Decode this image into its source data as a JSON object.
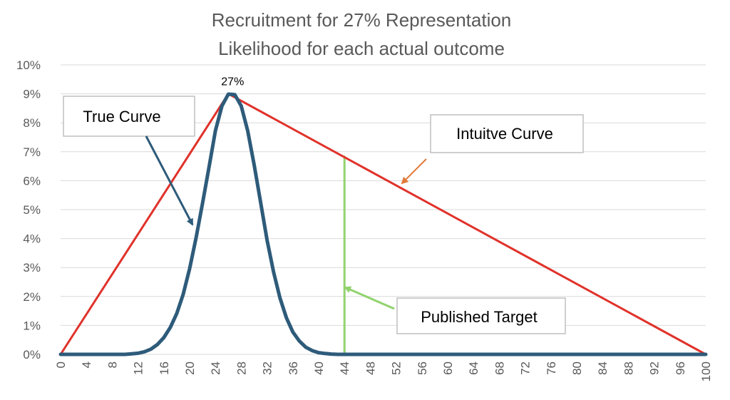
{
  "chart_data": {
    "type": "line",
    "title": "Recruitment for 27% Representation",
    "subtitle": "Likelihood for each actual outcome",
    "xlabel": "",
    "ylabel": "",
    "xlim": [
      0,
      100
    ],
    "ylim": [
      0,
      0.1
    ],
    "x_ticks": [
      0,
      4,
      8,
      12,
      16,
      20,
      24,
      28,
      32,
      36,
      40,
      44,
      48,
      52,
      56,
      60,
      64,
      68,
      72,
      76,
      80,
      84,
      88,
      92,
      96,
      100
    ],
    "y_ticks": [
      "0%",
      "1%",
      "2%",
      "3%",
      "4%",
      "5%",
      "6%",
      "7%",
      "8%",
      "9%",
      "10%"
    ],
    "y_tick_values": [
      0,
      0.01,
      0.02,
      0.03,
      0.04,
      0.05,
      0.06,
      0.07,
      0.08,
      0.09,
      0.1
    ],
    "grid": true,
    "legend": "none",
    "series": [
      {
        "name": "True Curve",
        "color": "#2E5B7A",
        "x": [
          0,
          4,
          8,
          10,
          11,
          12,
          13,
          14,
          15,
          16,
          17,
          18,
          19,
          20,
          21,
          22,
          23,
          24,
          25,
          26,
          27,
          28,
          29,
          30,
          31,
          32,
          33,
          34,
          35,
          36,
          37,
          38,
          39,
          40,
          41,
          42,
          43,
          44,
          48,
          60,
          80,
          100
        ],
        "y": [
          0,
          0,
          0,
          0,
          0.0002,
          0.0004,
          0.0009,
          0.0018,
          0.0034,
          0.0058,
          0.0093,
          0.0141,
          0.0207,
          0.0296,
          0.0402,
          0.0522,
          0.0645,
          0.0773,
          0.0858,
          0.0899,
          0.0897,
          0.0858,
          0.0773,
          0.0655,
          0.0525,
          0.0395,
          0.0285,
          0.0195,
          0.0126,
          0.0077,
          0.0046,
          0.0025,
          0.0013,
          0.0006,
          0.0003,
          0.0001,
          0,
          0,
          0,
          0,
          0,
          0
        ]
      },
      {
        "name": "Intuitve Curve",
        "color": "#E0322A",
        "x": [
          0,
          26,
          100
        ],
        "y": [
          0,
          0.09,
          0
        ]
      },
      {
        "name": "Published Target",
        "color": "#92D36E",
        "x": [
          44,
          44
        ],
        "y": [
          0,
          0.0683
        ]
      }
    ],
    "annotations": {
      "peak_label": "27%",
      "peak_x": 26,
      "peak_y": 0.09,
      "true_curve_label": "True Curve",
      "intuitive_curve_label": "Intuitve Curve",
      "published_target_label": "Published Target"
    }
  }
}
